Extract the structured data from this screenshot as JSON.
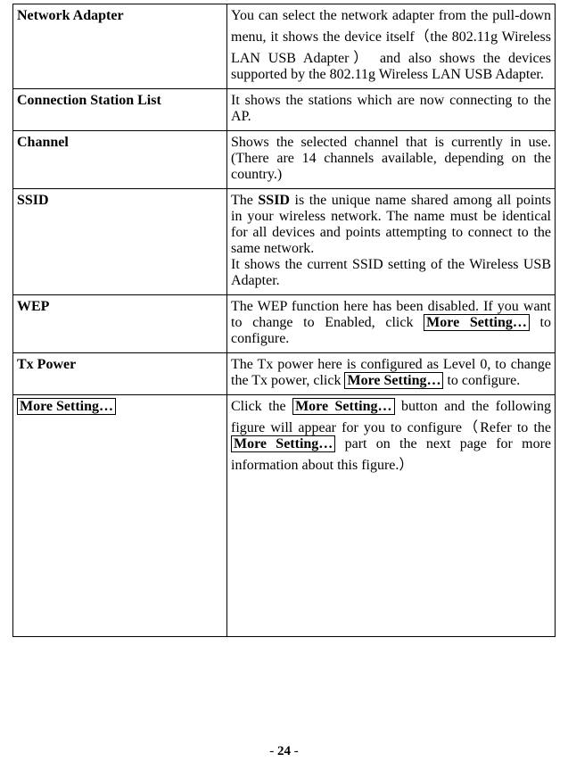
{
  "rows": [
    {
      "label": "Network Adapter",
      "desc_html": "You can select the network adapter from the pull-down menu, it shows the device itself（the 802.11g Wireless LAN USB Adapter）  and also shows the devices supported by the 802.11g Wireless LAN USB Adapter."
    },
    {
      "label": "Connection Station List",
      "desc_html": "It shows the stations which are now connecting to the AP."
    },
    {
      "label": "Channel",
      "desc_html": "Shows the selected channel that is currently in use. (There are 14 channels available, depending on the country.)"
    },
    {
      "label": "SSID",
      "desc_html": "The <span class=\"bold\">SSID</span> is the unique name shared among all points in your wireless network. The name must be identical for all devices and points attempting to connect to the same network.<br>It shows the current SSID setting of the Wireless USB Adapter."
    },
    {
      "label": "WEP",
      "desc_html": "The WEP function here has been disabled. If you want to change to Enabled, click <span class=\"btn\" data-name=\"more-setting-inline-button\" data-interactable=\"true\">More Setting…</span> to configure."
    },
    {
      "label": "Tx Power",
      "desc_html": "The Tx power here is configured as Level 0, to change the Tx power, click <span class=\"btn\" data-name=\"more-setting-inline-button\" data-interactable=\"true\">More Setting…</span> to configure."
    },
    {
      "label_html": "<span class=\"btn\" data-name=\"more-setting-button\" data-interactable=\"true\">More Setting…</span>",
      "desc_html": "Click the <span class=\"btn\" data-name=\"more-setting-inline-button\" data-interactable=\"true\">More Setting…</span> button and the following figure will appear for you to configure（Refer to the <span class=\"btn\" data-name=\"more-setting-inline-button\" data-interactable=\"true\">More Setting…</span> part on the next page for more information about this figure.）",
      "tall": true
    }
  ],
  "page_number": "24"
}
